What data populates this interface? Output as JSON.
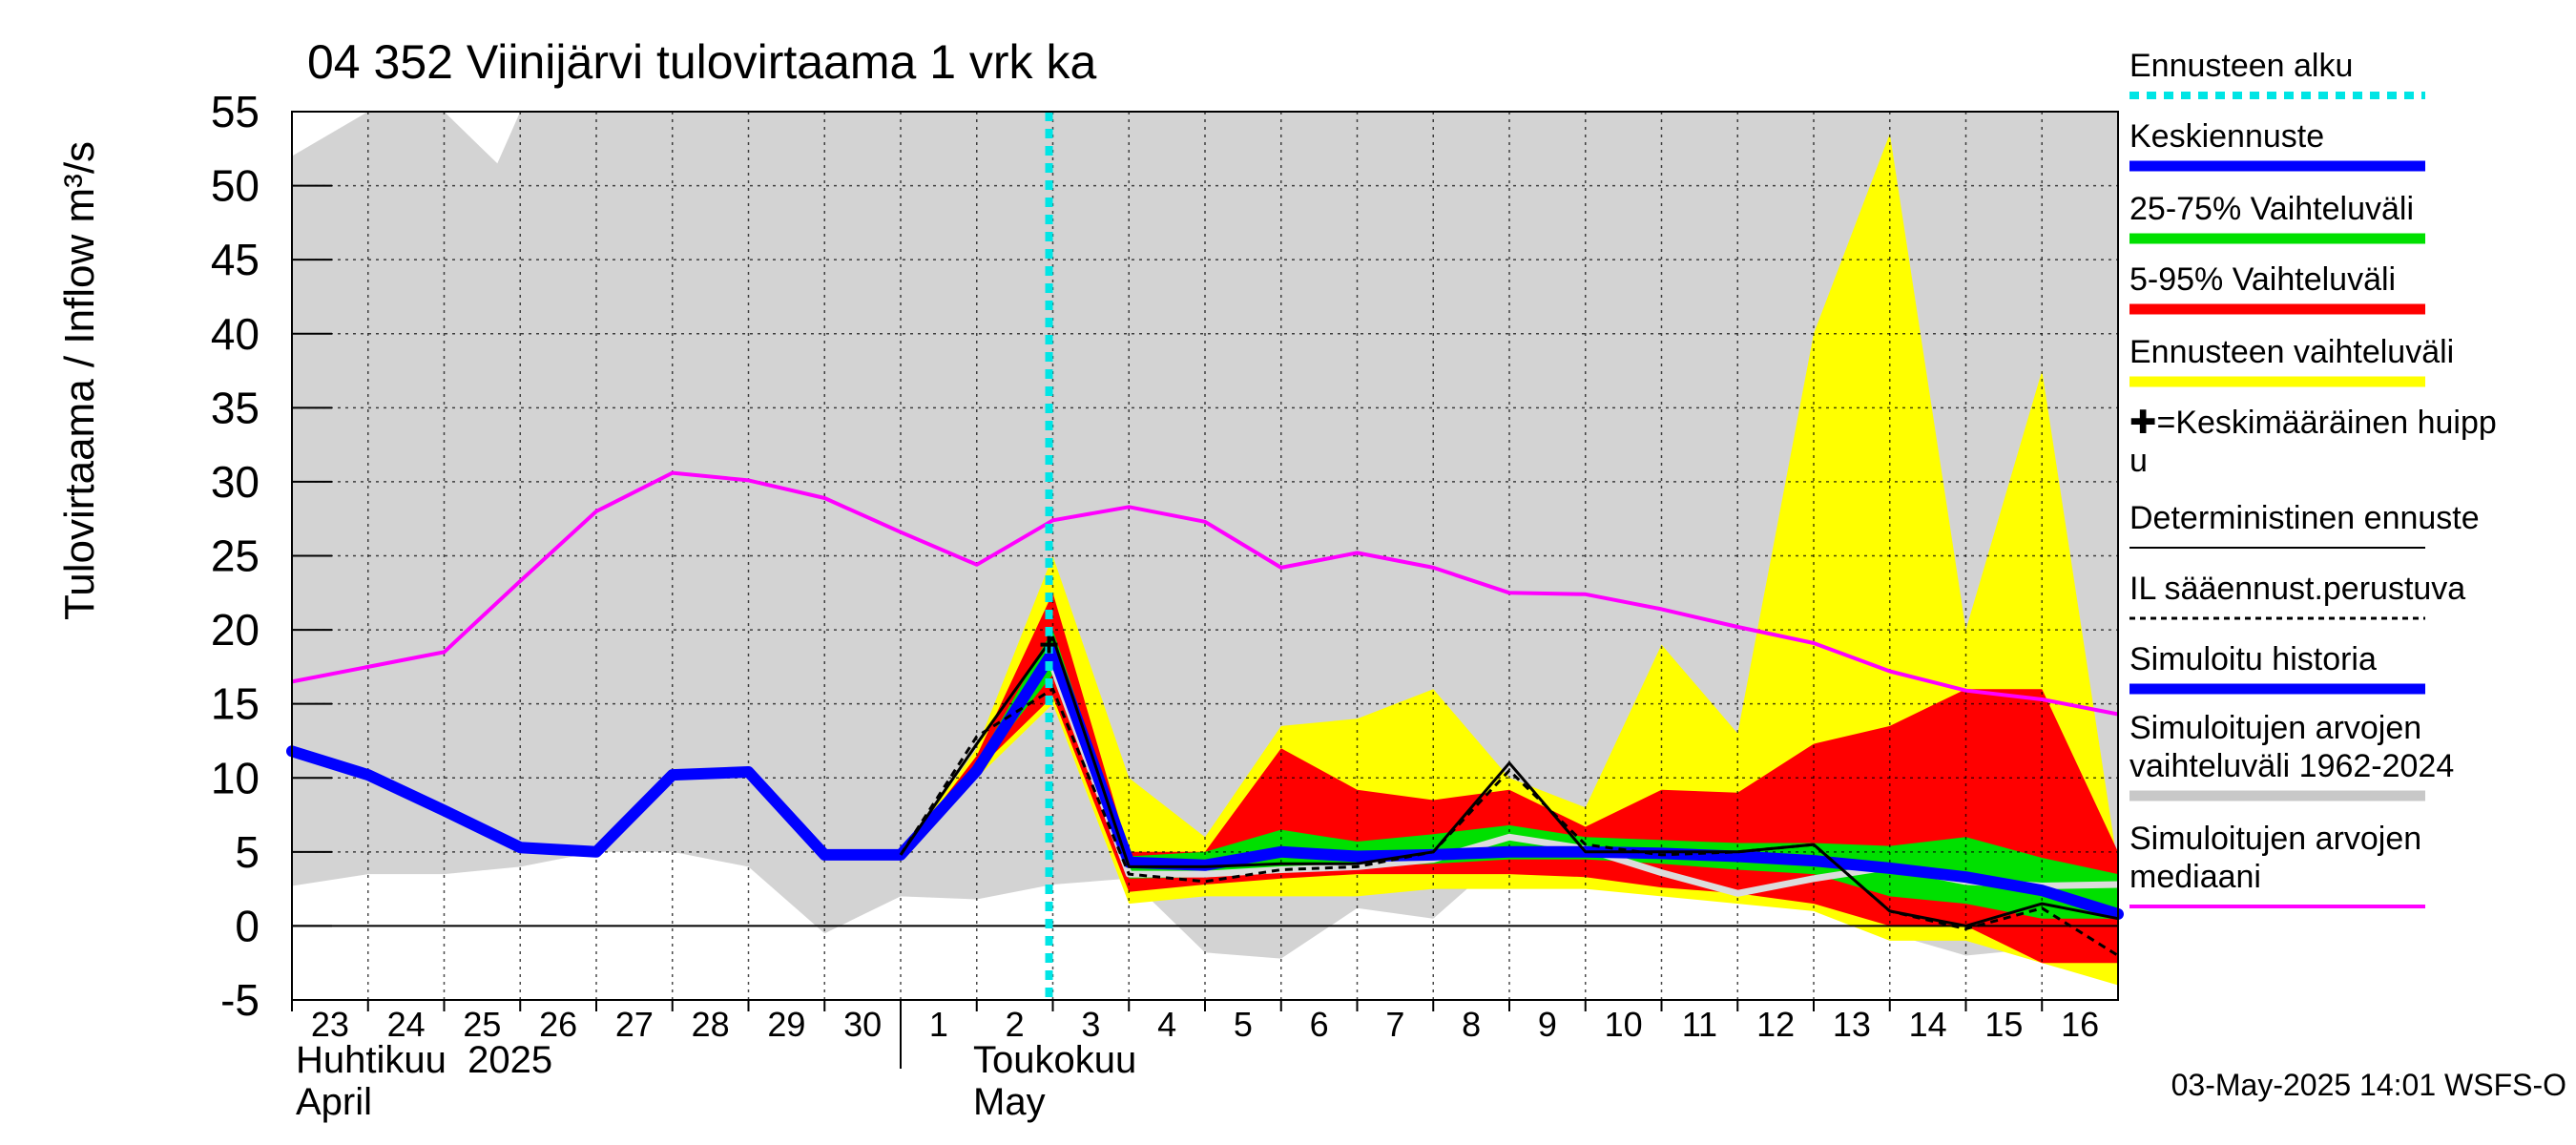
{
  "chart_data": {
    "type": "area",
    "title": "04 352 Viinijärvi tulovirtaama 1 vrk ka",
    "ylabel": "Tulovirtaama / Inflow    m³/s",
    "ylim": [
      -5,
      55
    ],
    "yticks": [
      -5,
      0,
      5,
      10,
      15,
      20,
      25,
      30,
      35,
      40,
      45,
      50,
      55
    ],
    "x_day_labels": [
      "23",
      "24",
      "25",
      "26",
      "27",
      "28",
      "29",
      "30",
      "1",
      "2",
      "3",
      "4",
      "5",
      "6",
      "7",
      "8",
      "9",
      "10",
      "11",
      "12",
      "13",
      "14",
      "15",
      "16"
    ],
    "month_labels": [
      {
        "fi": "Huhtikuu  2025",
        "en": "April"
      },
      {
        "fi": "Toukokuu",
        "en": "May"
      }
    ],
    "forecast_start_day_index": 10,
    "footer": "03-May-2025 14:01 WSFS-O",
    "legend": [
      {
        "label": "Ennusteen alku",
        "color": "#00e5e5",
        "style": "dotted-thick"
      },
      {
        "label": "Keskiennuste",
        "color": "#0000ff",
        "style": "thick"
      },
      {
        "label": "25-75% Vaihteluväli",
        "color": "#00e000",
        "style": "thick"
      },
      {
        "label": "5-95% Vaihteluväli",
        "color": "#ff0000",
        "style": "thick"
      },
      {
        "label": "Ennusteen vaihteluväli",
        "color": "#ffff00",
        "style": "thick"
      },
      {
        "label": "✚=Keskimääräinen huipp u",
        "color": "#000000",
        "style": "none"
      },
      {
        "label": "Deterministinen ennuste",
        "color": "#000000",
        "style": "thin"
      },
      {
        "label": "IL sääennust.perustuva",
        "color": "#000000",
        "style": "dashed"
      },
      {
        "label": "Simuloitu historia",
        "color": "#0000ff",
        "style": "thick"
      },
      {
        "label": "Simuloitujen arvojen vaihteluväli 1962-2024",
        "color": "#c8c8c8",
        "style": "thick"
      },
      {
        "label": "Simuloitujen arvojen mediaani",
        "color": "#ff00ff",
        "style": "medium"
      }
    ],
    "series": {
      "hist_range_upper": {
        "x": [
          0,
          1,
          2,
          2.7,
          3,
          3.3,
          24
        ],
        "y": [
          52,
          55,
          55,
          51.5,
          55,
          55,
          55
        ]
      },
      "hist_range_lower": {
        "x": [
          0,
          1,
          2,
          3,
          4,
          5,
          6,
          7,
          8,
          9,
          10,
          11,
          12,
          13,
          14,
          15,
          16,
          17,
          18,
          19,
          20,
          21,
          22,
          23,
          24
        ],
        "y": [
          2.7,
          3.5,
          3.5,
          4,
          5,
          5,
          4,
          -0.5,
          2,
          1.8,
          2.8,
          3.2,
          -1.8,
          -2.2,
          1.2,
          0.5,
          5,
          3,
          3,
          2,
          1.5,
          -0.5,
          -2,
          -1.5,
          -1.5
        ]
      },
      "median": {
        "x": [
          0,
          1,
          2,
          3,
          4,
          5,
          6,
          7,
          8,
          9,
          10,
          11,
          12,
          13,
          14,
          15,
          16,
          17,
          18,
          19,
          20,
          21,
          22,
          23,
          24
        ],
        "y": [
          16.5,
          17.5,
          18.5,
          23.3,
          28,
          30.6,
          30.1,
          28.9,
          26.6,
          24.4,
          27.4,
          28.3,
          27.3,
          24.2,
          25.2,
          24.2,
          22.5,
          22.4,
          21.4,
          20.2,
          19.1,
          17.2,
          15.9,
          15.3,
          14.3
        ]
      },
      "ensemble_range": {
        "x": [
          8,
          9,
          10,
          11,
          12,
          13,
          14,
          15,
          16,
          17,
          18,
          19,
          20,
          21,
          22,
          23,
          24
        ],
        "upper": [
          4.8,
          12,
          25,
          10,
          6,
          13.5,
          14,
          16,
          10,
          8,
          19,
          13,
          40,
          53.5,
          20,
          37.5,
          4
        ],
        "lower": [
          4.8,
          10,
          15,
          1.5,
          2,
          2,
          2,
          2.5,
          2.5,
          2.5,
          2,
          1.5,
          1,
          -1,
          -1,
          -2.5,
          -4
        ]
      },
      "range_5_95": {
        "x": [
          8,
          9,
          10,
          11,
          12,
          13,
          14,
          15,
          16,
          17,
          18,
          19,
          20,
          21,
          22,
          23,
          24
        ],
        "upper": [
          4.8,
          11.5,
          22.5,
          5,
          5,
          12,
          9.2,
          8.5,
          9.2,
          6.7,
          9.2,
          9,
          12.3,
          13.5,
          16,
          16,
          5
        ],
        "lower": [
          4.8,
          10.5,
          15.5,
          2.3,
          2.8,
          3.2,
          3.5,
          3.5,
          3.5,
          3.3,
          2.6,
          2.2,
          1.5,
          0,
          0,
          -2.5,
          -2.5
        ]
      },
      "range_25_75": {
        "x": [
          8,
          9,
          10,
          11,
          12,
          13,
          14,
          15,
          16,
          17,
          18,
          19,
          20,
          21,
          22,
          23,
          24
        ],
        "upper": [
          4.8,
          11,
          20,
          4.7,
          5,
          6.5,
          5.7,
          6.2,
          6.8,
          6,
          5.8,
          5.6,
          5.6,
          5.4,
          6,
          4.6,
          3.5
        ],
        "lower": [
          4.8,
          10.5,
          17,
          3.2,
          3.3,
          3.8,
          4,
          4.2,
          4.5,
          4.5,
          4.2,
          3.8,
          3.5,
          2,
          1.5,
          0.5,
          0.5
        ]
      },
      "sim_median_light": {
        "x": [
          10,
          11,
          12,
          13,
          14,
          15,
          16,
          17,
          18,
          19,
          20,
          21,
          22,
          23,
          24
        ],
        "y": [
          17.5,
          3.5,
          3.5,
          3.8,
          4,
          4.5,
          6,
          5.2,
          3.6,
          2.2,
          3.2,
          4,
          3,
          2.7,
          2.8
        ]
      },
      "mean_forecast": {
        "x": [
          0,
          1,
          2,
          3,
          4,
          5,
          6,
          7,
          8,
          9,
          10,
          11,
          12,
          13,
          14,
          15,
          16,
          17,
          18,
          19,
          20,
          21,
          22,
          23,
          24
        ],
        "y": [
          11.8,
          10.2,
          7.8,
          5.3,
          5,
          10.2,
          10.4,
          4.8,
          4.8,
          10.5,
          18.5,
          4.3,
          4.1,
          5,
          4.7,
          4.8,
          5,
          5,
          4.9,
          4.7,
          4.4,
          3.9,
          3.3,
          2.4,
          0.8
        ]
      },
      "deterministic": {
        "x": [
          8,
          9,
          10,
          11,
          12,
          13,
          14,
          15,
          16,
          17,
          18,
          19,
          20,
          21,
          22,
          23,
          24
        ],
        "y": [
          4.8,
          12.3,
          19.5,
          4,
          4,
          4.2,
          4.2,
          5,
          11,
          5,
          5,
          5,
          5.5,
          1,
          0,
          1.5,
          0.5
        ]
      },
      "il_forecast": {
        "x": [
          8,
          9,
          10,
          11,
          12,
          13,
          14,
          15,
          16,
          17,
          18,
          19,
          20,
          21,
          22,
          23,
          24
        ],
        "y": [
          4.8,
          12.8,
          16,
          3.5,
          3,
          3.8,
          4,
          5,
          10.5,
          5.5,
          4.8,
          5,
          5.5,
          1,
          -0.2,
          1.2,
          -2
        ]
      },
      "peak_marker": {
        "x": 10,
        "y": 19
      }
    }
  }
}
